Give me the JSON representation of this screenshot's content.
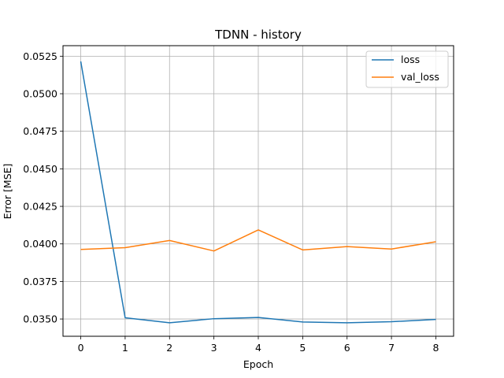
{
  "chart_data": {
    "type": "line",
    "title": "TDNN - history",
    "xlabel": "Epoch",
    "ylabel": "Error [MSE]",
    "x": [
      0,
      1,
      2,
      3,
      4,
      5,
      6,
      7,
      8
    ],
    "xticks": [
      "0",
      "1",
      "2",
      "3",
      "4",
      "5",
      "6",
      "7",
      "8"
    ],
    "yticks": [
      "0.0350",
      "0.0375",
      "0.0400",
      "0.0425",
      "0.0450",
      "0.0475",
      "0.0500",
      "0.0525"
    ],
    "ytick_values": [
      0.035,
      0.0375,
      0.04,
      0.0425,
      0.045,
      0.0475,
      0.05,
      0.0525
    ],
    "xlim": [
      -0.4,
      8.4
    ],
    "ylim": [
      0.03385,
      0.0532
    ],
    "grid": true,
    "legend_position": "upper right",
    "series": [
      {
        "name": "loss",
        "color": "#1f77b4",
        "values": [
          0.05215,
          0.03508,
          0.03475,
          0.03502,
          0.0351,
          0.0348,
          0.03475,
          0.03482,
          0.03497
        ]
      },
      {
        "name": "val_loss",
        "color": "#ff7f0e",
        "values": [
          0.03963,
          0.03975,
          0.04023,
          0.03953,
          0.04093,
          0.0396,
          0.03982,
          0.03966,
          0.04014
        ]
      }
    ]
  }
}
